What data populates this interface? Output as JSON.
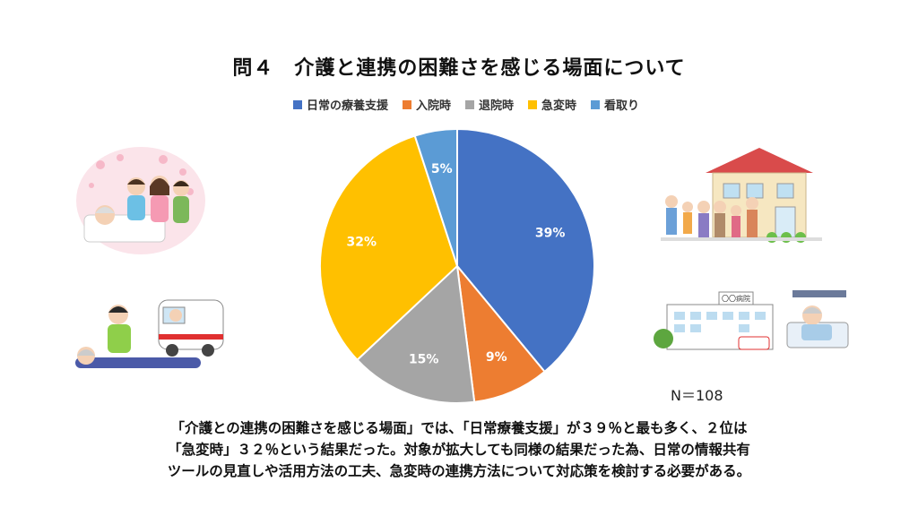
{
  "title": "問４　介護と連携の困難さを感じる場面について",
  "note": "N＝108",
  "summary": [
    "「介護との連携の困難さを感じる場面」では、「日常療養支援」が３９％と最も多く、２位は",
    "「急変時」３２％という結果だった。対象が拡大しても同様の結果だった為、日常の情報共有",
    "ツールの見直しや活用方法の工夫、急変時の連携方法について対応策を検討する必要がある。"
  ],
  "hospital_sign": "〇〇病院",
  "chart_data": {
    "type": "pie",
    "title": "問４　介護と連携の困難さを感じる場面について",
    "legend_position": "top",
    "slices": [
      {
        "label": "日常の療養支援",
        "value": 39,
        "display": "39%",
        "color": "#4472C4"
      },
      {
        "label": "入院時",
        "value": 9,
        "display": "9%",
        "color": "#ED7D31"
      },
      {
        "label": "退院時",
        "value": 15,
        "display": "15%",
        "color": "#A5A5A5"
      },
      {
        "label": "急変時",
        "value": 32,
        "display": "32%",
        "color": "#FFC000"
      },
      {
        "label": "看取り",
        "value": 5,
        "display": "5%",
        "color": "#5B9BD5"
      }
    ]
  }
}
